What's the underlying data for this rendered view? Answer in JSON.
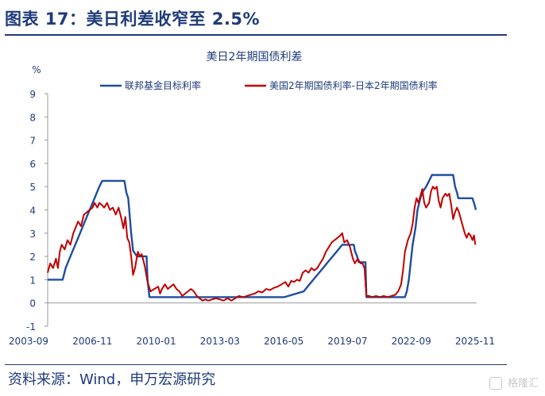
{
  "figure": {
    "title": "图表 17：美日利差收窄至 2.5%",
    "source": "资料来源：Wind，申万宏源研究",
    "watermark": "格隆汇"
  },
  "chart_data": {
    "type": "line",
    "title": "美日2年期国债利差",
    "ylabel": "%",
    "ylim": [
      -1,
      9
    ],
    "yticks": [
      -1,
      0,
      1,
      2,
      3,
      4,
      5,
      6,
      7,
      8,
      9
    ],
    "xlim": [
      2003.67,
      2025.92
    ],
    "xtick_labels": [
      "2003-09",
      "2006-11",
      "2010-01",
      "2013-03",
      "2016-05",
      "2019-07",
      "2022-09",
      "2025-11"
    ],
    "legend_position": "top",
    "series": [
      {
        "name": "联邦基金目标利率",
        "color": "#1f4e9f",
        "points": [
          [
            2003.67,
            1.0
          ],
          [
            2004.45,
            1.0
          ],
          [
            2004.6,
            1.5
          ],
          [
            2004.85,
            2.0
          ],
          [
            2005.1,
            2.5
          ],
          [
            2005.35,
            3.0
          ],
          [
            2005.6,
            3.5
          ],
          [
            2005.85,
            4.0
          ],
          [
            2006.1,
            4.5
          ],
          [
            2006.35,
            5.0
          ],
          [
            2006.5,
            5.25
          ],
          [
            2007.65,
            5.25
          ],
          [
            2007.75,
            4.75
          ],
          [
            2007.85,
            4.5
          ],
          [
            2008.0,
            3.0
          ],
          [
            2008.1,
            2.25
          ],
          [
            2008.3,
            2.0
          ],
          [
            2008.8,
            2.0
          ],
          [
            2008.85,
            1.0
          ],
          [
            2008.95,
            0.25
          ],
          [
            2015.95,
            0.25
          ],
          [
            2016.95,
            0.5
          ],
          [
            2017.2,
            0.75
          ],
          [
            2017.45,
            1.0
          ],
          [
            2017.7,
            1.25
          ],
          [
            2017.95,
            1.5
          ],
          [
            2018.2,
            1.75
          ],
          [
            2018.45,
            2.0
          ],
          [
            2018.7,
            2.25
          ],
          [
            2018.95,
            2.5
          ],
          [
            2019.55,
            2.5
          ],
          [
            2019.6,
            2.25
          ],
          [
            2019.72,
            2.0
          ],
          [
            2019.8,
            1.75
          ],
          [
            2020.15,
            1.75
          ],
          [
            2020.2,
            0.25
          ],
          [
            2022.2,
            0.25
          ],
          [
            2022.3,
            0.5
          ],
          [
            2022.4,
            1.0
          ],
          [
            2022.5,
            1.75
          ],
          [
            2022.6,
            2.5
          ],
          [
            2022.75,
            3.25
          ],
          [
            2022.85,
            4.0
          ],
          [
            2023.0,
            4.5
          ],
          [
            2023.1,
            4.75
          ],
          [
            2023.3,
            5.0
          ],
          [
            2023.45,
            5.25
          ],
          [
            2023.6,
            5.5
          ],
          [
            2024.7,
            5.5
          ],
          [
            2024.8,
            5.0
          ],
          [
            2024.9,
            4.75
          ],
          [
            2024.97,
            4.5
          ],
          [
            2025.7,
            4.5
          ],
          [
            2025.8,
            4.25
          ],
          [
            2025.88,
            4.0
          ]
        ]
      },
      {
        "name": "美国2年期国债利率-日本2年期国债利率",
        "color": "#c00000",
        "points": [
          [
            2003.67,
            1.3
          ],
          [
            2003.8,
            1.7
          ],
          [
            2003.95,
            1.5
          ],
          [
            2004.1,
            1.9
          ],
          [
            2004.2,
            1.5
          ],
          [
            2004.3,
            2.2
          ],
          [
            2004.4,
            2.5
          ],
          [
            2004.55,
            2.3
          ],
          [
            2004.7,
            2.7
          ],
          [
            2004.85,
            2.5
          ],
          [
            2005.0,
            3.0
          ],
          [
            2005.1,
            3.2
          ],
          [
            2005.25,
            3.5
          ],
          [
            2005.4,
            3.3
          ],
          [
            2005.55,
            3.8
          ],
          [
            2005.7,
            3.9
          ],
          [
            2005.85,
            4.0
          ],
          [
            2006.0,
            4.1
          ],
          [
            2006.1,
            4.3
          ],
          [
            2006.25,
            4.1
          ],
          [
            2006.35,
            4.3
          ],
          [
            2006.5,
            4.2
          ],
          [
            2006.6,
            4.1
          ],
          [
            2006.75,
            4.3
          ],
          [
            2006.9,
            4.0
          ],
          [
            2007.05,
            4.1
          ],
          [
            2007.2,
            3.8
          ],
          [
            2007.35,
            4.1
          ],
          [
            2007.5,
            3.6
          ],
          [
            2007.6,
            3.2
          ],
          [
            2007.7,
            3.7
          ],
          [
            2007.8,
            2.8
          ],
          [
            2007.9,
            2.6
          ],
          [
            2008.0,
            2.0
          ],
          [
            2008.1,
            1.2
          ],
          [
            2008.2,
            1.5
          ],
          [
            2008.35,
            2.2
          ],
          [
            2008.45,
            2.0
          ],
          [
            2008.55,
            2.1
          ],
          [
            2008.7,
            1.6
          ],
          [
            2008.85,
            0.9
          ],
          [
            2009.0,
            0.5
          ],
          [
            2009.2,
            0.6
          ],
          [
            2009.4,
            0.7
          ],
          [
            2009.5,
            0.4
          ],
          [
            2009.6,
            0.6
          ],
          [
            2009.75,
            0.8
          ],
          [
            2009.9,
            0.6
          ],
          [
            2010.05,
            0.7
          ],
          [
            2010.2,
            0.8
          ],
          [
            2010.35,
            0.6
          ],
          [
            2010.5,
            0.5
          ],
          [
            2010.65,
            0.3
          ],
          [
            2010.8,
            0.4
          ],
          [
            2010.95,
            0.5
          ],
          [
            2011.1,
            0.6
          ],
          [
            2011.25,
            0.5
          ],
          [
            2011.4,
            0.3
          ],
          [
            2011.55,
            0.2
          ],
          [
            2011.7,
            0.1
          ],
          [
            2011.85,
            0.15
          ],
          [
            2012.0,
            0.1
          ],
          [
            2012.2,
            0.15
          ],
          [
            2012.4,
            0.2
          ],
          [
            2012.6,
            0.15
          ],
          [
            2012.8,
            0.1
          ],
          [
            2013.0,
            0.2
          ],
          [
            2013.2,
            0.1
          ],
          [
            2013.4,
            0.2
          ],
          [
            2013.6,
            0.3
          ],
          [
            2013.8,
            0.25
          ],
          [
            2014.0,
            0.3
          ],
          [
            2014.2,
            0.35
          ],
          [
            2014.4,
            0.4
          ],
          [
            2014.6,
            0.5
          ],
          [
            2014.8,
            0.45
          ],
          [
            2015.0,
            0.6
          ],
          [
            2015.2,
            0.55
          ],
          [
            2015.4,
            0.65
          ],
          [
            2015.6,
            0.7
          ],
          [
            2015.8,
            0.8
          ],
          [
            2016.0,
            0.9
          ],
          [
            2016.15,
            0.7
          ],
          [
            2016.3,
            0.95
          ],
          [
            2016.45,
            0.9
          ],
          [
            2016.6,
            1.0
          ],
          [
            2016.75,
            0.95
          ],
          [
            2016.9,
            1.3
          ],
          [
            2017.05,
            1.4
          ],
          [
            2017.2,
            1.3
          ],
          [
            2017.35,
            1.5
          ],
          [
            2017.5,
            1.4
          ],
          [
            2017.65,
            1.5
          ],
          [
            2017.8,
            1.7
          ],
          [
            2017.95,
            1.9
          ],
          [
            2018.1,
            2.2
          ],
          [
            2018.25,
            2.4
          ],
          [
            2018.4,
            2.6
          ],
          [
            2018.55,
            2.7
          ],
          [
            2018.7,
            2.8
          ],
          [
            2018.85,
            2.9
          ],
          [
            2018.95,
            3.0
          ],
          [
            2019.05,
            2.6
          ],
          [
            2019.2,
            2.7
          ],
          [
            2019.35,
            2.4
          ],
          [
            2019.5,
            1.9
          ],
          [
            2019.6,
            1.7
          ],
          [
            2019.75,
            1.9
          ],
          [
            2019.9,
            1.7
          ],
          [
            2020.0,
            1.7
          ],
          [
            2020.1,
            1.5
          ],
          [
            2020.2,
            0.3
          ],
          [
            2020.35,
            0.3
          ],
          [
            2020.5,
            0.25
          ],
          [
            2020.7,
            0.3
          ],
          [
            2020.9,
            0.25
          ],
          [
            2021.1,
            0.3
          ],
          [
            2021.3,
            0.25
          ],
          [
            2021.5,
            0.3
          ],
          [
            2021.7,
            0.35
          ],
          [
            2021.85,
            0.5
          ],
          [
            2022.0,
            0.8
          ],
          [
            2022.1,
            1.4
          ],
          [
            2022.2,
            2.2
          ],
          [
            2022.35,
            2.7
          ],
          [
            2022.5,
            3.0
          ],
          [
            2022.6,
            3.4
          ],
          [
            2022.7,
            4.1
          ],
          [
            2022.8,
            4.5
          ],
          [
            2022.9,
            4.3
          ],
          [
            2023.0,
            4.6
          ],
          [
            2023.1,
            4.9
          ],
          [
            2023.2,
            4.3
          ],
          [
            2023.3,
            4.1
          ],
          [
            2023.45,
            4.3
          ],
          [
            2023.55,
            4.8
          ],
          [
            2023.65,
            5.0
          ],
          [
            2023.75,
            4.9
          ],
          [
            2023.85,
            5.0
          ],
          [
            2023.95,
            4.4
          ],
          [
            2024.05,
            4.1
          ],
          [
            2024.15,
            4.5
          ],
          [
            2024.3,
            4.7
          ],
          [
            2024.4,
            4.6
          ],
          [
            2024.5,
            4.7
          ],
          [
            2024.6,
            4.2
          ],
          [
            2024.7,
            3.6
          ],
          [
            2024.8,
            3.9
          ],
          [
            2024.9,
            4.1
          ],
          [
            2025.0,
            3.9
          ],
          [
            2025.1,
            3.6
          ],
          [
            2025.2,
            3.3
          ],
          [
            2025.3,
            3.0
          ],
          [
            2025.4,
            2.8
          ],
          [
            2025.5,
            3.0
          ],
          [
            2025.6,
            2.9
          ],
          [
            2025.7,
            2.7
          ],
          [
            2025.78,
            2.9
          ],
          [
            2025.85,
            2.5
          ]
        ]
      }
    ]
  }
}
